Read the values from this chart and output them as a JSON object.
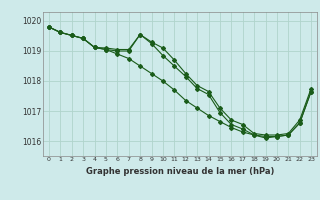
{
  "title": "Graphe pression niveau de la mer (hPa)",
  "bg_color": "#ceeaea",
  "grid_color": "#b0d4cc",
  "line_color": "#1a5c1a",
  "text_color": "#333333",
  "ylim": [
    1015.5,
    1020.3
  ],
  "xlim": [
    -0.5,
    23.5
  ],
  "yticks": [
    1016,
    1017,
    1018,
    1019,
    1020
  ],
  "xticks": [
    0,
    1,
    2,
    3,
    4,
    5,
    6,
    7,
    8,
    9,
    10,
    11,
    12,
    13,
    14,
    15,
    16,
    17,
    18,
    19,
    20,
    21,
    22,
    23
  ],
  "series1": [
    1019.8,
    1019.62,
    1019.52,
    1019.42,
    1019.12,
    1019.1,
    1019.05,
    1019.05,
    1019.55,
    1019.3,
    1019.1,
    1018.7,
    1018.25,
    1017.85,
    1017.65,
    1017.1,
    1016.7,
    1016.55,
    1016.25,
    1016.2,
    1016.2,
    1016.25,
    1016.7,
    1017.75
  ],
  "series2": [
    1019.8,
    1019.62,
    1019.52,
    1019.42,
    1019.12,
    1019.05,
    1019.0,
    1019.0,
    1019.55,
    1019.25,
    1018.85,
    1018.5,
    1018.15,
    1017.75,
    1017.55,
    1016.95,
    1016.55,
    1016.4,
    1016.2,
    1016.1,
    1016.15,
    1016.2,
    1016.6,
    1017.65
  ],
  "series3": [
    1019.8,
    1019.62,
    1019.52,
    1019.42,
    1019.12,
    1019.05,
    1018.9,
    1018.75,
    1018.5,
    1018.25,
    1018.0,
    1017.7,
    1017.35,
    1017.1,
    1016.85,
    1016.65,
    1016.45,
    1016.3,
    1016.2,
    1016.15,
    1016.15,
    1016.2,
    1016.6,
    1017.65
  ]
}
